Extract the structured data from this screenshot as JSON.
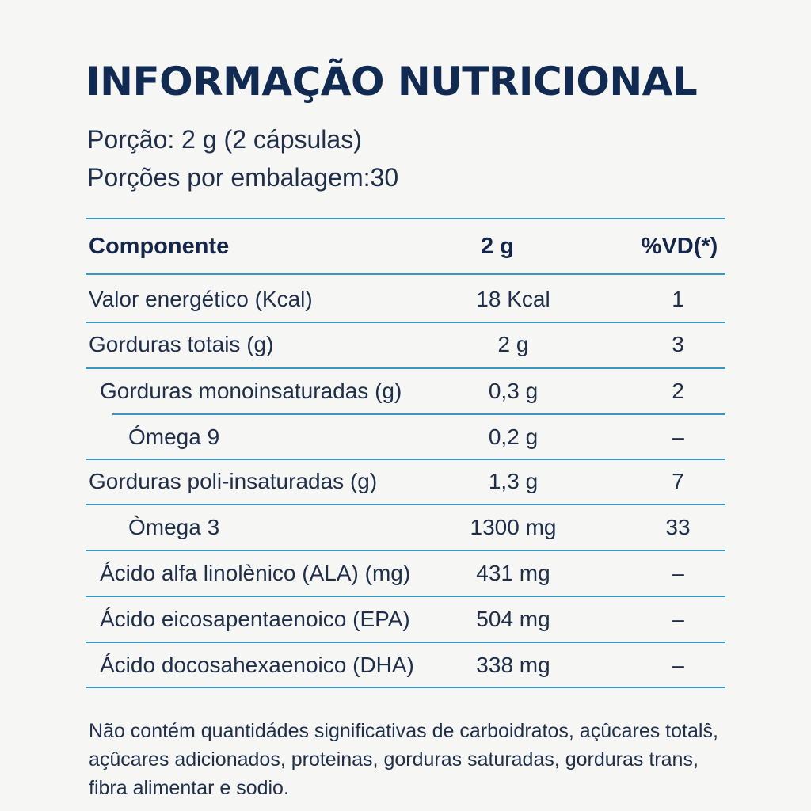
{
  "label": {
    "title": "INFORMAÇÃO NUTRICIONAL",
    "serving_size": "Porção: 2 g (2 cápsulas)",
    "servings_per_package": "Porções por embalagem:30"
  },
  "table": {
    "headers": {
      "component": "Componente",
      "amount": "2 g",
      "daily_value": "%VD(*)"
    },
    "rows": [
      {
        "name": "Valor energético (Kcal)",
        "amount": "18 Kcal",
        "daily_value": "1"
      },
      {
        "name": "Gorduras totais (g)",
        "amount": "2 g",
        "daily_value": "3"
      },
      {
        "name": "Gorduras monoinsaturadas (g)",
        "amount": "0,3 g",
        "daily_value": "2"
      },
      {
        "name": "Ómega 9",
        "amount": "0,2 g",
        "daily_value": "–"
      },
      {
        "name": "Gorduras poli-insaturadas (g)",
        "amount": "1,3 g",
        "daily_value": "7"
      },
      {
        "name": "Òmega 3",
        "amount": "1300 mg",
        "daily_value": "33"
      },
      {
        "name": "Ácido alfa linolènico (ALA) (mg)",
        "amount": "431 mg",
        "daily_value": "–"
      },
      {
        "name": "Ácido eicosapentaenoico (EPA)",
        "amount": "504 mg",
        "daily_value": "–"
      },
      {
        "name": "Ácido docosahexaenoico (DHA)",
        "amount": "338 mg",
        "daily_value": "–"
      }
    ]
  },
  "footnote": "Não contém quantidádes significativas de carboidratos, açûcares totalŝ, açûcares adicionados, proteinas, gorduras saturadas, gorduras trans, fibra alimentar e sodio.",
  "colors": {
    "title": "#102a52",
    "text": "#1f2f4a",
    "rule": "#3a95c3",
    "background": "#f6f6f4"
  }
}
